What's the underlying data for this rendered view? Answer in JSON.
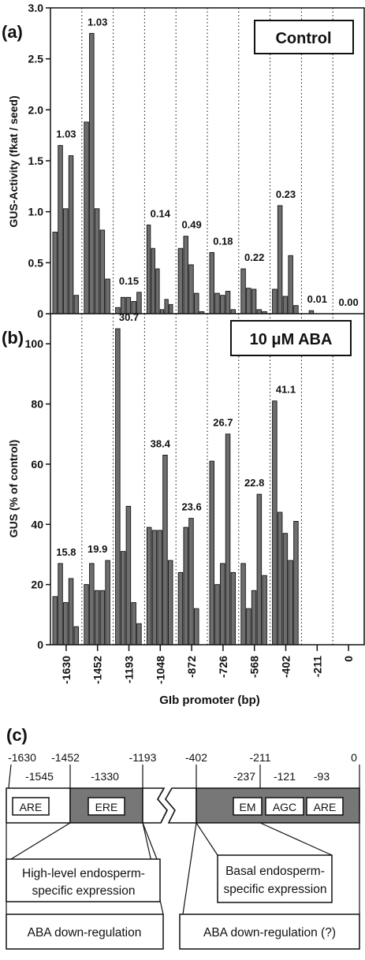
{
  "panel_a": {
    "label": "(a)",
    "box_label": "Control",
    "ylabel": "GUS-Activity (fkat / seed)",
    "yticks": [
      "0",
      "0.5",
      "1.0",
      "1.5",
      "2.0",
      "2.5",
      "3.0"
    ]
  },
  "panel_b": {
    "label": "(b)",
    "box_label": "10 μM ABA",
    "ylabel": "GUS (% of control)",
    "yticks": [
      "0",
      "20",
      "40",
      "60",
      "80",
      "100"
    ]
  },
  "xlabel": "GIb promoter (bp)",
  "categories": [
    "-1630",
    "-1452",
    "-1193",
    "-1048",
    "-872",
    "-726",
    "-568",
    "-402",
    "-211",
    "0"
  ],
  "chart_data": [
    {
      "type": "bar",
      "title": "Control",
      "ylabel": "GUS-Activity (fkat / seed)",
      "ylim": [
        0,
        3.0
      ],
      "categories": [
        "-1630",
        "-1452",
        "-1193",
        "-1048",
        "-872",
        "-726",
        "-568",
        "-402",
        "-211",
        "0"
      ],
      "group_values": [
        [
          0.8,
          1.65,
          1.03,
          1.55,
          0.18
        ],
        [
          1.88,
          2.75,
          1.03,
          0.82,
          0.34
        ],
        [
          0.06,
          0.16,
          0.16,
          0.12,
          0.21
        ],
        [
          0.87,
          0.64,
          0.44,
          0.04,
          0.14,
          0.09
        ],
        [
          0.64,
          0.76,
          0.48,
          0.2,
          0.02
        ],
        [
          0.6,
          0.2,
          0.18,
          0.22,
          0.04
        ],
        [
          0.44,
          0.25,
          0.24,
          0.04,
          0.02
        ],
        [
          0.24,
          1.06,
          0.17,
          0.57,
          0.08
        ],
        [
          0.0,
          0.03,
          0.0
        ],
        []
      ],
      "data_labels": [
        "1.03",
        "1.03",
        "0.15",
        "0.14",
        "0.49",
        "0.18",
        "0.22",
        "0.23",
        "0.01",
        "0.00"
      ],
      "grid": "dotted vertical separators"
    },
    {
      "type": "bar",
      "title": "10 μM ABA",
      "ylabel": "GUS (% of control)",
      "xlabel": "GIb promoter (bp)",
      "ylim": [
        0,
        110
      ],
      "categories": [
        "-1630",
        "-1452",
        "-1193",
        "-1048",
        "-872",
        "-726",
        "-568",
        "-402",
        "-211",
        "0"
      ],
      "group_values": [
        [
          16,
          27,
          14,
          22,
          6
        ],
        [
          20,
          27,
          18,
          18,
          28
        ],
        [
          105,
          31,
          46,
          14,
          7
        ],
        [
          39,
          38,
          38,
          63,
          28
        ],
        [
          24,
          39,
          42,
          12
        ],
        [
          61,
          20,
          27,
          70,
          24
        ],
        [
          27,
          12,
          18,
          50,
          23
        ],
        [
          81,
          44,
          37,
          28,
          41
        ],
        [],
        []
      ],
      "data_labels": [
        "15.8",
        "19.9",
        "30.7",
        "38.4",
        "23.6",
        "26.7",
        "22.8",
        "41.1",
        "",
        ""
      ],
      "grid": "dotted vertical separators"
    }
  ],
  "panel_c": {
    "label": "(c)",
    "top_positions": [
      "-1630",
      "-1452",
      "-1193",
      "-402",
      "-211",
      "0"
    ],
    "sub_positions": [
      "-1545",
      "-1330",
      "-237",
      "-121",
      "-93"
    ],
    "elements": [
      "ARE",
      "ERE",
      "EM",
      "AGC",
      "ARE"
    ],
    "box_left_1": "High-level endosperm-",
    "box_left_2": "specific expression",
    "box_right_1": "Basal endosperm-",
    "box_right_2": "specific expression",
    "bottom_left": "ABA down-regulation",
    "bottom_right": "ABA down-regulation (?)"
  }
}
